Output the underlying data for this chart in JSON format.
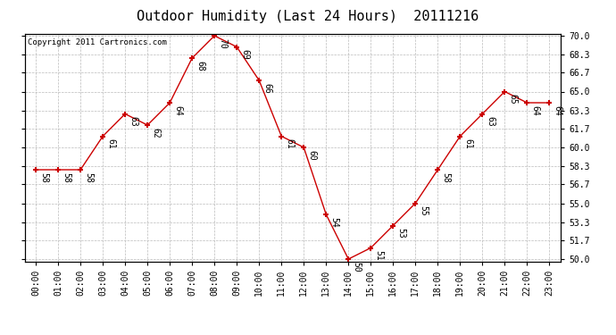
{
  "title": "Outdoor Humidity (Last 24 Hours)  20111216",
  "copyright_text": "Copyright 2011 Cartronics.com",
  "hours": [
    0,
    1,
    2,
    3,
    4,
    5,
    6,
    7,
    8,
    9,
    10,
    11,
    12,
    13,
    14,
    15,
    16,
    17,
    18,
    19,
    20,
    21,
    22,
    23
  ],
  "humidity": [
    58,
    58,
    58,
    61,
    63,
    62,
    64,
    68,
    70,
    69,
    66,
    61,
    60,
    54,
    50,
    51,
    53,
    55,
    58,
    61,
    63,
    65,
    64,
    64
  ],
  "xlabels": [
    "00:00",
    "01:00",
    "02:00",
    "03:00",
    "04:00",
    "05:00",
    "06:00",
    "07:00",
    "08:00",
    "09:00",
    "10:00",
    "11:00",
    "12:00",
    "13:00",
    "14:00",
    "15:00",
    "16:00",
    "17:00",
    "18:00",
    "19:00",
    "20:00",
    "21:00",
    "22:00",
    "23:00"
  ],
  "ymin": 50.0,
  "ymax": 70.0,
  "yticks": [
    50.0,
    51.7,
    53.3,
    55.0,
    56.7,
    58.3,
    60.0,
    61.7,
    63.3,
    65.0,
    66.7,
    68.3,
    70.0
  ],
  "line_color": "#cc0000",
  "marker_color": "#cc0000",
  "grid_color": "#bbbbbb",
  "bg_color": "#ffffff",
  "title_fontsize": 11,
  "label_fontsize": 7,
  "annotation_fontsize": 7,
  "copyright_fontsize": 6.5
}
